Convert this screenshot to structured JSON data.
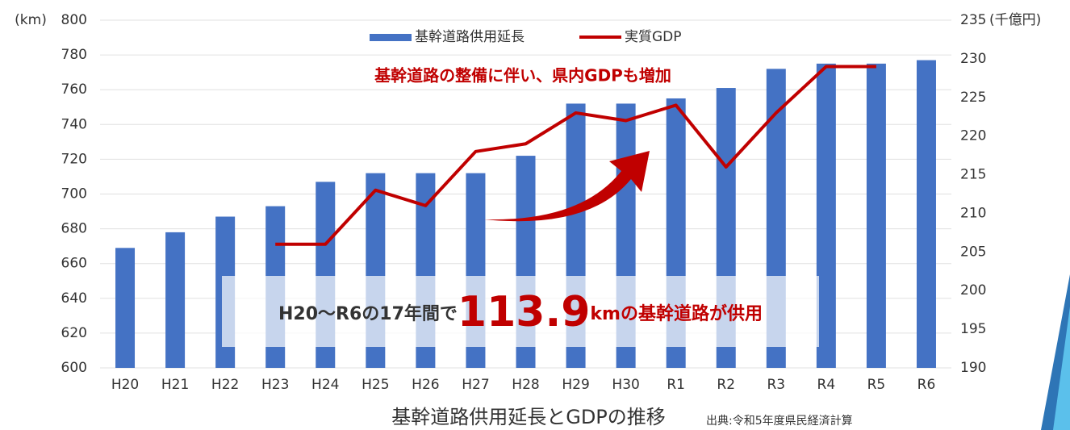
{
  "chart_data": {
    "type": "bar",
    "title": "基幹道路供用延長とGDPの推移",
    "source": "出典:令和5年度県民経済計算",
    "y_label": "(km)",
    "y2_label": "(千億円)",
    "annotation": "基幹道路の整備に伴い、県内GDPも増加",
    "callout": {
      "prefix": "H20～R6の17年間で",
      "number": "113.9",
      "suffix": "kmの基幹道路が供用"
    },
    "categories": [
      "H20",
      "H21",
      "H22",
      "H23",
      "H24",
      "H25",
      "H26",
      "H27",
      "H28",
      "H29",
      "H30",
      "R1",
      "R2",
      "R3",
      "R4",
      "R5",
      "R6"
    ],
    "series": [
      {
        "name": "基幹道路供用延長",
        "type": "bar",
        "color": "#4472c4",
        "values": [
          669,
          678,
          687,
          693,
          707,
          712,
          712,
          712,
          722,
          752,
          752,
          755,
          761,
          772,
          775,
          775,
          777
        ]
      },
      {
        "name": "実質GDP",
        "type": "line",
        "axis": "y2",
        "color": "#c00000",
        "values": [
          null,
          null,
          null,
          206,
          206,
          213,
          211,
          218,
          219,
          223,
          222,
          224,
          216,
          223,
          229,
          229,
          null
        ]
      }
    ],
    "ylim": [
      600,
      800
    ],
    "yticks": [
      600,
      620,
      640,
      660,
      680,
      700,
      720,
      740,
      760,
      780,
      800
    ],
    "y2lim": [
      190,
      235
    ],
    "y2ticks": [
      190,
      195,
      200,
      205,
      210,
      215,
      220,
      225,
      230,
      235
    ],
    "grid": true
  }
}
